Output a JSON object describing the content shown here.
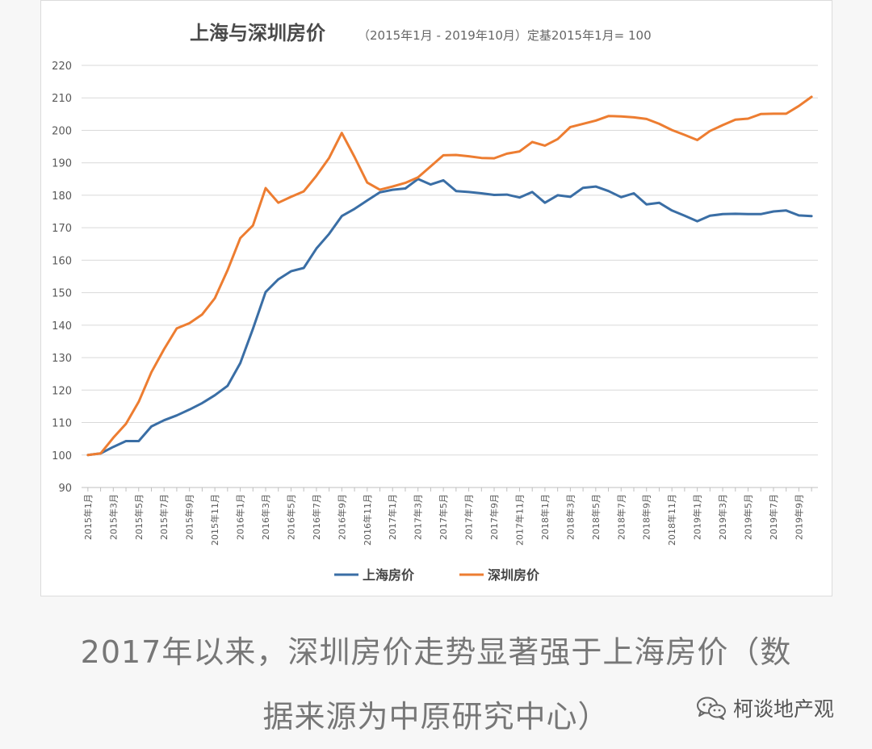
{
  "chart_data": {
    "type": "line",
    "title": "上海与深圳房价",
    "subtitle": "（2015年1月 - 2019年10月）定基2015年1月= 100",
    "ylim": [
      90,
      220
    ],
    "yticks": [
      90,
      100,
      110,
      120,
      130,
      140,
      150,
      160,
      170,
      180,
      190,
      200,
      210,
      220
    ],
    "grid": true,
    "legend_position": "bottom",
    "x": [
      "2015年1月",
      "2015年2月",
      "2015年3月",
      "2015年4月",
      "2015年5月",
      "2015年6月",
      "2015年7月",
      "2015年8月",
      "2015年9月",
      "2015年10月",
      "2015年11月",
      "2015年12月",
      "2016年1月",
      "2016年2月",
      "2016年3月",
      "2016年4月",
      "2016年5月",
      "2016年6月",
      "2016年7月",
      "2016年8月",
      "2016年9月",
      "2016年10月",
      "2016年11月",
      "2016年12月",
      "2017年1月",
      "2017年2月",
      "2017年3月",
      "2017年4月",
      "2017年5月",
      "2017年6月",
      "2017年7月",
      "2017年8月",
      "2017年9月",
      "2017年10月",
      "2017年11月",
      "2017年12月",
      "2018年1月",
      "2018年2月",
      "2018年3月",
      "2018年4月",
      "2018年5月",
      "2018年6月",
      "2018年7月",
      "2018年8月",
      "2018年9月",
      "2018年10月",
      "2018年11月",
      "2018年12月",
      "2019年1月",
      "2019年2月",
      "2019年3月",
      "2019年4月",
      "2019年5月",
      "2019年6月",
      "2019年7月",
      "2019年8月",
      "2019年9月",
      "2019年10月"
    ],
    "x_tick_labels": [
      "2015年1月",
      "2015年3月",
      "2015年5月",
      "2015年7月",
      "2015年9月",
      "2015年11月",
      "2016年1月",
      "2016年3月",
      "2016年5月",
      "2016年7月",
      "2016年9月",
      "2016年11月",
      "2017年1月",
      "2017年3月",
      "2017年5月",
      "2017年7月",
      "2017年9月",
      "2017年11月",
      "2018年1月",
      "2018年3月",
      "2018年5月",
      "2018年7月",
      "2018年9月",
      "2018年11月",
      "2019年1月",
      "2019年3月",
      "2019年5月",
      "2019年7月",
      "2019年9月"
    ],
    "series": [
      {
        "name": "上海房价",
        "color": "#3a6ea5",
        "values": [
          100,
          100.5,
          102.5,
          104.3,
          104.3,
          108.8,
          110.7,
          112.2,
          114,
          116,
          118.4,
          121.3,
          128.3,
          138.9,
          150.2,
          154.1,
          156.6,
          157.6,
          163.6,
          168.1,
          173.6,
          175.8,
          178.4,
          180.9,
          181.7,
          182.1,
          185,
          183.3,
          184.6,
          181.3,
          181,
          180.6,
          180.1,
          180.2,
          179.3,
          181,
          177.7,
          180,
          179.5,
          182.3,
          182.7,
          181.3,
          179.4,
          180.6,
          177.2,
          177.7,
          175.3,
          173.7,
          172,
          173.7,
          174.2,
          174.3,
          174.2,
          174.2,
          175,
          175.3,
          173.8,
          173.6
        ]
      },
      {
        "name": "深圳房价",
        "color": "#ed7d31",
        "values": [
          100,
          100.5,
          105.3,
          109.6,
          116.4,
          125.5,
          132.6,
          139,
          140.6,
          143.3,
          148.3,
          156.9,
          166.8,
          170.7,
          182.2,
          177.7,
          179.5,
          181.2,
          186,
          191.5,
          199.2,
          191.8,
          183.9,
          181.7,
          182.7,
          183.8,
          185.5,
          188.9,
          192.3,
          192.4,
          192,
          191.5,
          191.4,
          192.8,
          193.5,
          196.4,
          195.3,
          197.3,
          201,
          202,
          203,
          204.4,
          204.3,
          204,
          203.5,
          202,
          200.1,
          198.6,
          197,
          199.8,
          201.6,
          203.3,
          203.6,
          205,
          205.1,
          205.1,
          207.5,
          210.3
        ]
      }
    ]
  },
  "caption": {
    "line1": "2017年以来，深圳房价走势显著强于上海房价（数",
    "line2": "据来源为中原研究中心）"
  },
  "watermark": {
    "text": "柯谈地产观",
    "icon": "wechat-icon"
  }
}
